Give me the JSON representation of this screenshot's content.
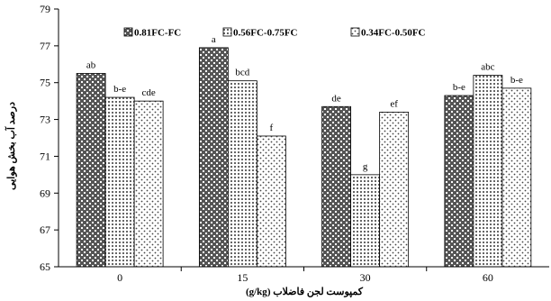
{
  "chart_data": {
    "type": "bar",
    "categories": [
      "0",
      "15",
      "30",
      "60"
    ],
    "series": [
      {
        "name": "0.81FC-FC",
        "values": [
          75.5,
          76.9,
          73.7,
          74.3
        ],
        "labels": [
          "ab",
          "a",
          "de",
          "b-e"
        ],
        "pattern": "dark-dots"
      },
      {
        "name": "0.56FC-0.75FC",
        "values": [
          74.2,
          75.1,
          70.0,
          75.4
        ],
        "labels": [
          "b-e",
          "bcd",
          "g",
          "abc"
        ],
        "pattern": "grid-dots"
      },
      {
        "name": "0.34FC-0.50FC",
        "values": [
          74.0,
          72.1,
          73.4,
          74.7
        ],
        "labels": [
          "cde",
          "f",
          "ef",
          "b-e"
        ],
        "pattern": "sparse-dots"
      }
    ],
    "ylim": [
      65,
      79
    ],
    "yticks": [
      "65",
      "67",
      "69",
      "71",
      "73",
      "75",
      "77",
      "79"
    ],
    "ylabel": "درصد آب بخش هوایی",
    "xlabel": "کمپوست لجن فاضلاب (g/kg)",
    "legend_position": "top",
    "grid": false
  }
}
